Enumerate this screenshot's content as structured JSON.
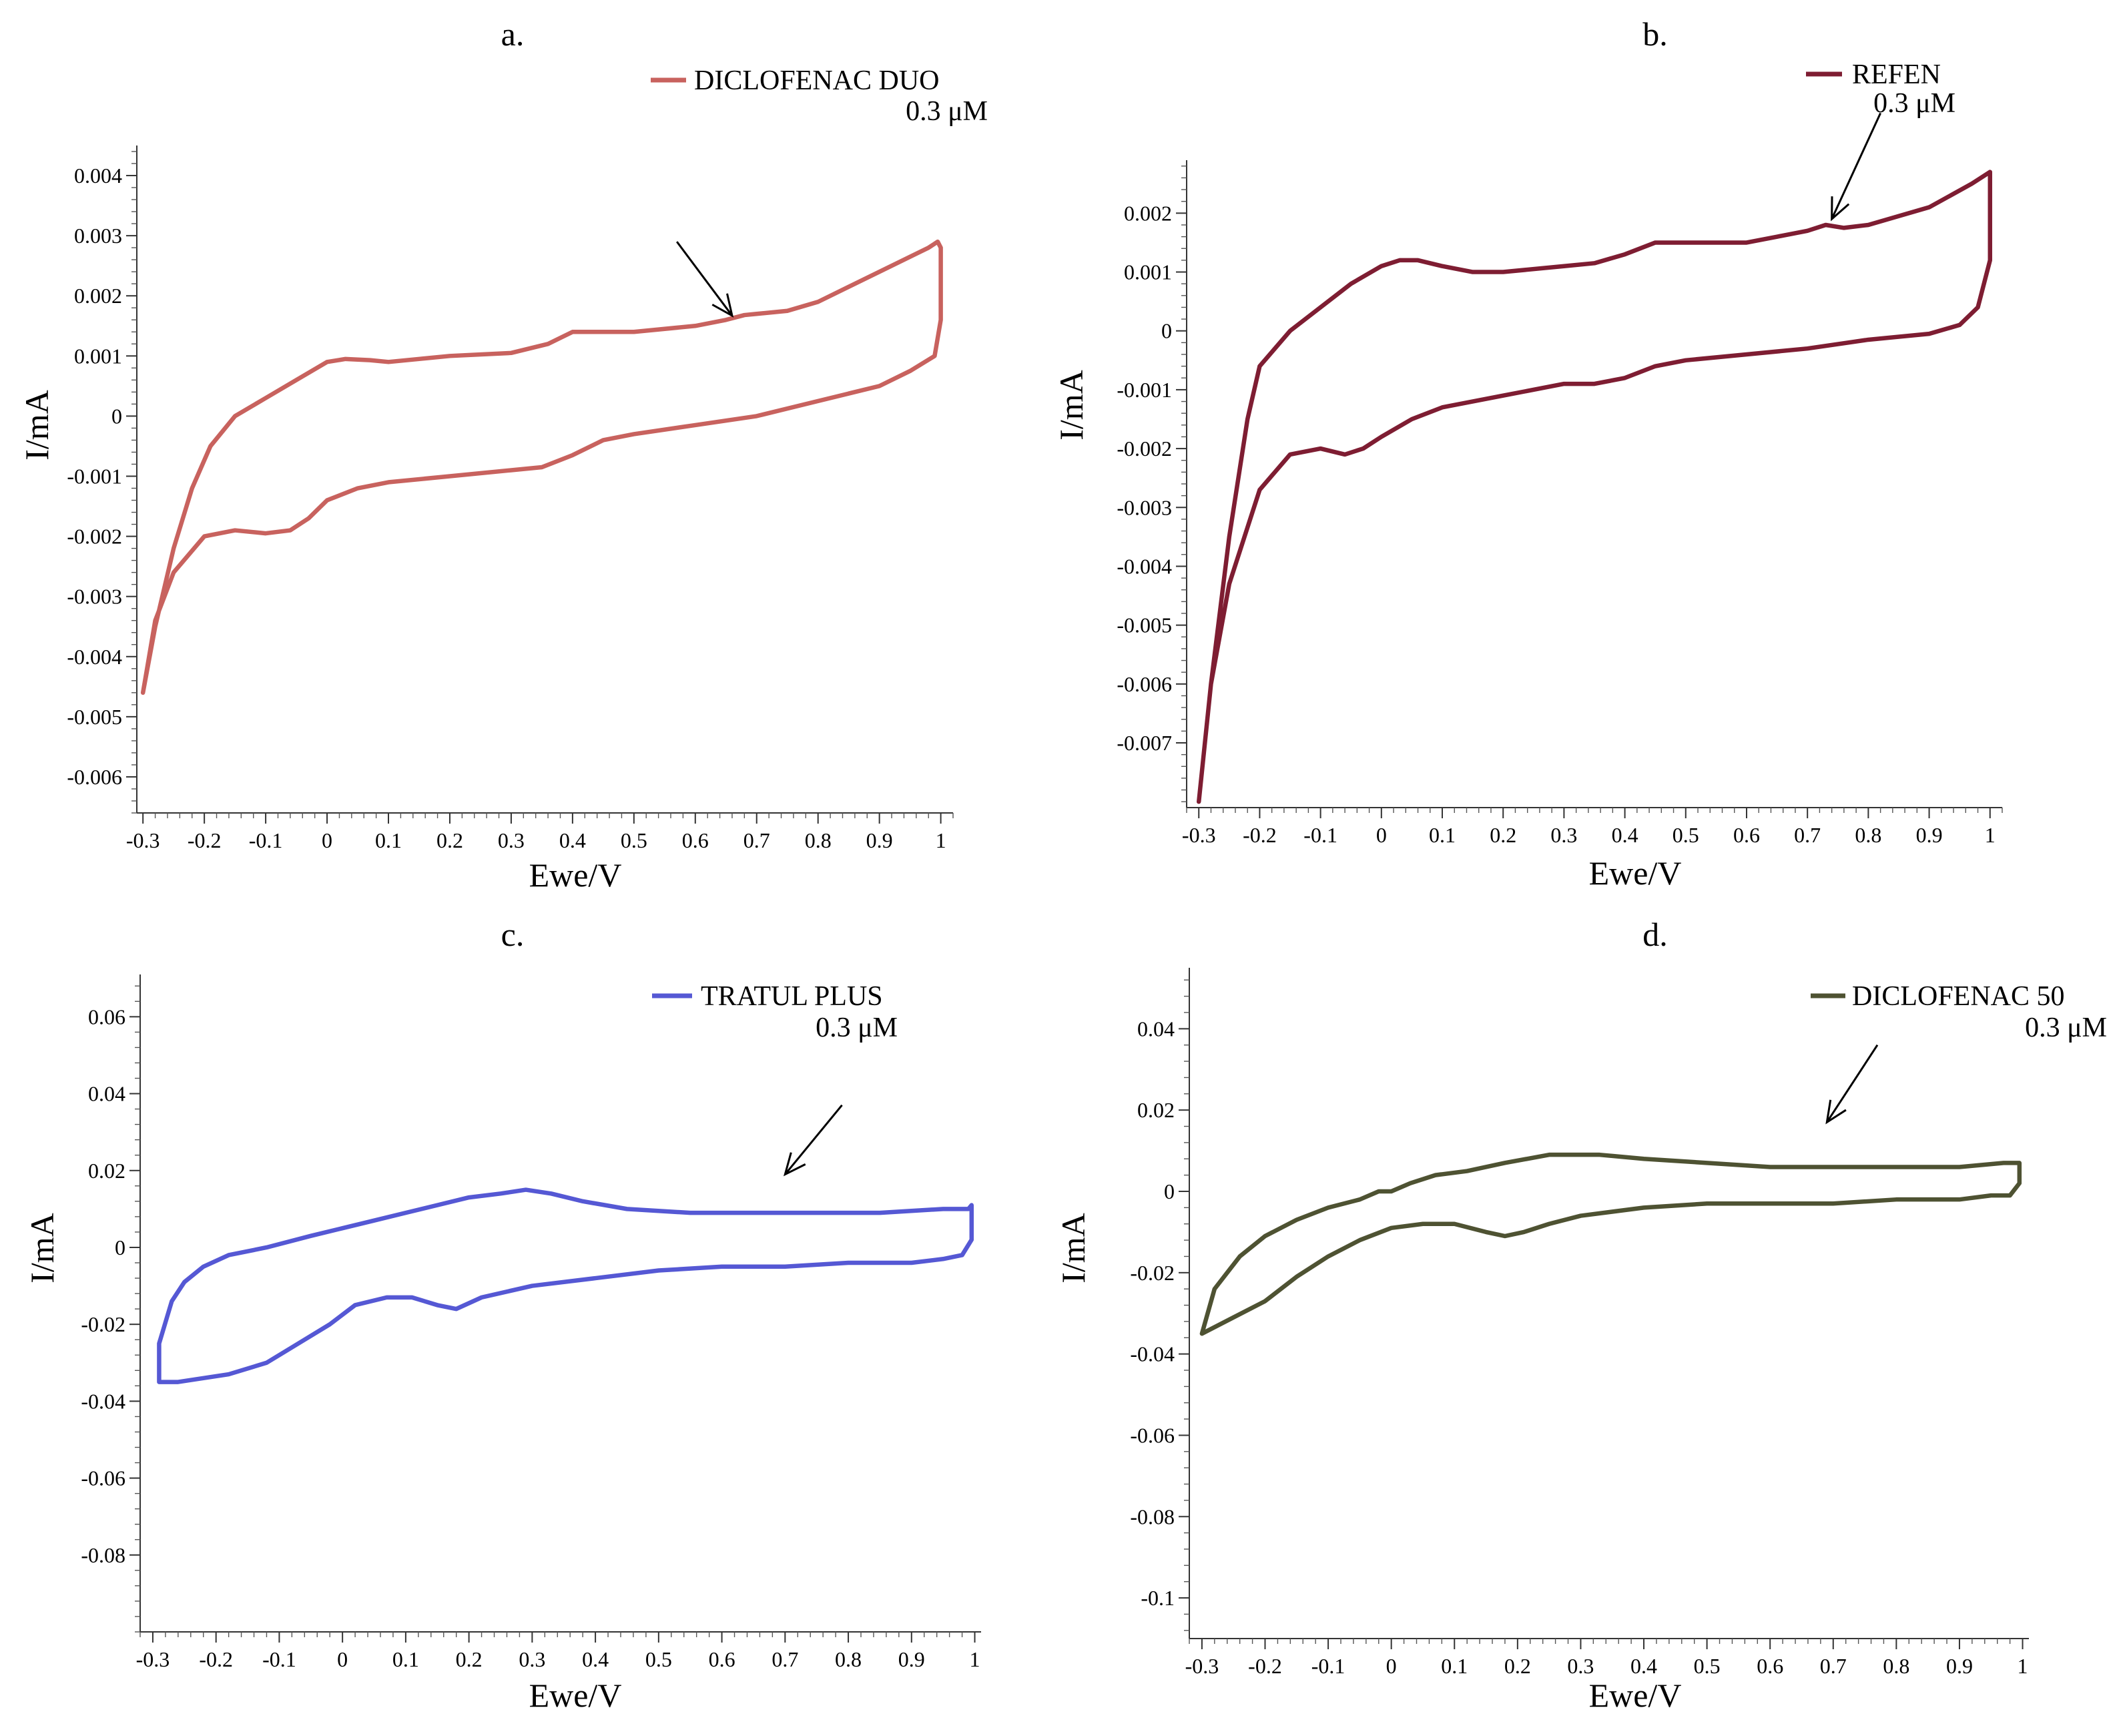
{
  "chart_data": [
    {
      "type": "line",
      "panel_label": "a.",
      "legend": {
        "name": "DICLOFENAC DUO",
        "sub": "0.3 μM",
        "placement": "top-right"
      },
      "color": "#c8625e",
      "xlabel": "Ewe/V",
      "ylabel": "I/mA",
      "xlim": [
        -0.31,
        1.02
      ],
      "ylim": [
        -0.0066,
        0.0045
      ],
      "x_ticks": [
        -0.3,
        -0.2,
        -0.1,
        0,
        0.1,
        0.2,
        0.3,
        0.4,
        0.5,
        0.6,
        0.7,
        0.8,
        0.9,
        1
      ],
      "x_tick_labels": [
        "-0.3",
        "-0.2",
        "-0.1",
        "0",
        "0.1",
        "0.2",
        "0.3",
        "0.4",
        "0.5",
        "0.6",
        "0.7",
        "0.8",
        "0.9",
        "1"
      ],
      "y_ticks": [
        0.004,
        0.003,
        0.002,
        0.001,
        0,
        -0.001,
        -0.002,
        -0.003,
        -0.004,
        -0.005,
        -0.006
      ],
      "y_tick_labels": [
        "0.004",
        "0.003",
        "0.002",
        "0.001",
        "0",
        "-0.001",
        "-0.002",
        "-0.003",
        "-0.004",
        "-0.005",
        "-0.006"
      ],
      "arrow": {
        "from": [
          0.57,
          0.0029
        ],
        "to": [
          0.66,
          0.00167
        ]
      },
      "series": [
        {
          "name": "DICLOFENAC DUO",
          "x": [
            -0.3,
            -0.28,
            -0.25,
            -0.22,
            -0.19,
            -0.15,
            -0.1,
            -0.05,
            0,
            0.03,
            0.07,
            0.1,
            0.15,
            0.2,
            0.3,
            0.36,
            0.4,
            0.42,
            0.5,
            0.6,
            0.65,
            0.68,
            0.7,
            0.75,
            0.8,
            0.9,
            0.98,
            0.995,
            1.0,
            1.0,
            0.99,
            0.95,
            0.9,
            0.8,
            0.7,
            0.6,
            0.5,
            0.45,
            0.4,
            0.35,
            0.3,
            0.2,
            0.1,
            0.05,
            0.0,
            -0.03,
            -0.06,
            -0.1,
            -0.15,
            -0.2,
            -0.25,
            -0.28,
            -0.3
          ],
          "y": [
            -0.0046,
            -0.0035,
            -0.0022,
            -0.0012,
            -0.0005,
            0.0,
            0.0003,
            0.0006,
            0.0009,
            0.00095,
            0.00093,
            0.0009,
            0.00095,
            0.001,
            0.00105,
            0.0012,
            0.0014,
            0.0014,
            0.0014,
            0.0015,
            0.0016,
            0.00168,
            0.0017,
            0.00175,
            0.0019,
            0.0024,
            0.0028,
            0.0029,
            0.0028,
            0.0016,
            0.001,
            0.00075,
            0.0005,
            0.00025,
            0.0,
            -0.00015,
            -0.0003,
            -0.0004,
            -0.00065,
            -0.00085,
            -0.0009,
            -0.001,
            -0.0011,
            -0.0012,
            -0.0014,
            -0.0017,
            -0.0019,
            -0.00195,
            -0.0019,
            -0.002,
            -0.0026,
            -0.0034,
            -0.0046
          ]
        }
      ]
    },
    {
      "type": "line",
      "panel_label": "b.",
      "legend": {
        "name": "REFEN",
        "sub": "0.3 μM",
        "placement": "top-right"
      },
      "color": "#7e1d32",
      "xlabel": "Ewe/V",
      "ylabel": "I/mA",
      "xlim": [
        -0.32,
        1.02
      ],
      "ylim": [
        -0.0081,
        0.0029
      ],
      "x_ticks": [
        -0.3,
        -0.2,
        -0.1,
        0,
        0.1,
        0.2,
        0.3,
        0.4,
        0.5,
        0.6,
        0.7,
        0.8,
        0.9,
        1
      ],
      "x_tick_labels": [
        "-0.3",
        "-0.2",
        "-0.1",
        "0",
        "0.1",
        "0.2",
        "0.3",
        "0.4",
        "0.5",
        "0.6",
        "0.7",
        "0.8",
        "0.9",
        "1"
      ],
      "y_ticks": [
        0.002,
        0.001,
        0,
        -0.001,
        -0.002,
        -0.003,
        -0.004,
        -0.005,
        -0.006,
        -0.007
      ],
      "y_tick_labels": [
        "0.002",
        "0.001",
        "0",
        "-0.001",
        "-0.002",
        "-0.003",
        "-0.004",
        "-0.005",
        "-0.006",
        "-0.007"
      ],
      "arrow": {
        "from": [
          0.82,
          0.0037
        ],
        "to": [
          0.74,
          0.0019
        ]
      },
      "series": [
        {
          "name": "REFEN",
          "x": [
            -0.3,
            -0.28,
            -0.25,
            -0.22,
            -0.2,
            -0.15,
            -0.1,
            -0.05,
            0,
            0.03,
            0.06,
            0.1,
            0.15,
            0.2,
            0.3,
            0.35,
            0.4,
            0.45,
            0.5,
            0.6,
            0.65,
            0.7,
            0.73,
            0.76,
            0.8,
            0.9,
            0.97,
            1.0,
            1.0,
            0.98,
            0.95,
            0.9,
            0.8,
            0.7,
            0.6,
            0.5,
            0.45,
            0.4,
            0.35,
            0.3,
            0.2,
            0.1,
            0.05,
            0.0,
            -0.03,
            -0.06,
            -0.1,
            -0.15,
            -0.2,
            -0.25,
            -0.28,
            -0.3
          ],
          "y": [
            -0.008,
            -0.006,
            -0.0035,
            -0.0015,
            -0.0006,
            0.0,
            0.0004,
            0.0008,
            0.0011,
            0.0012,
            0.0012,
            0.0011,
            0.001,
            0.001,
            0.0011,
            0.00115,
            0.0013,
            0.0015,
            0.0015,
            0.0015,
            0.0016,
            0.0017,
            0.0018,
            0.00175,
            0.0018,
            0.0021,
            0.0025,
            0.0027,
            0.0012,
            0.0004,
            0.0001,
            -5e-05,
            -0.00015,
            -0.0003,
            -0.0004,
            -0.0005,
            -0.0006,
            -0.0008,
            -0.0009,
            -0.0009,
            -0.0011,
            -0.0013,
            -0.0015,
            -0.0018,
            -0.002,
            -0.0021,
            -0.002,
            -0.0021,
            -0.0027,
            -0.0043,
            -0.006,
            -0.008
          ]
        }
      ]
    },
    {
      "type": "line",
      "panel_label": "c.",
      "legend": {
        "name": "TRATUL PLUS",
        "sub": "0.3 μM",
        "placement": "top-right"
      },
      "color": "#5558d4",
      "xlabel": "Ewe/V",
      "ylabel": "I/mA",
      "xlim": [
        -0.32,
        1.01
      ],
      "ylim": [
        -0.1,
        0.071
      ],
      "x_ticks": [
        -0.3,
        -0.2,
        -0.1,
        0,
        0.1,
        0.2,
        0.3,
        0.4,
        0.5,
        0.6,
        0.7,
        0.8,
        0.9,
        1
      ],
      "x_tick_labels": [
        "-0.3",
        "-0.2",
        "-0.1",
        "0",
        "0.1",
        "0.2",
        "0.3",
        "0.4",
        "0.5",
        "0.6",
        "0.7",
        "0.8",
        "0.9",
        "1"
      ],
      "y_ticks": [
        0.06,
        0.04,
        0.02,
        0,
        -0.02,
        -0.04,
        -0.06,
        -0.08
      ],
      "y_tick_labels": [
        "0.06",
        "0.04",
        "0.02",
        "0",
        "-0.02",
        "-0.04",
        "-0.06",
        "-0.08"
      ],
      "arrow": {
        "from": [
          0.79,
          0.037
        ],
        "to": [
          0.7,
          0.019
        ]
      },
      "series": [
        {
          "name": "TRATUL PLUS",
          "x": [
            -0.29,
            -0.27,
            -0.25,
            -0.22,
            -0.18,
            -0.12,
            -0.05,
            0.0,
            0.05,
            0.1,
            0.15,
            0.2,
            0.25,
            0.29,
            0.33,
            0.38,
            0.45,
            0.55,
            0.65,
            0.75,
            0.85,
            0.95,
            0.99,
            0.995,
            0.995,
            0.98,
            0.95,
            0.9,
            0.8,
            0.7,
            0.6,
            0.5,
            0.4,
            0.3,
            0.22,
            0.18,
            0.15,
            0.11,
            0.07,
            0.02,
            -0.02,
            -0.07,
            -0.12,
            -0.18,
            -0.22,
            -0.26,
            -0.29,
            -0.29
          ],
          "y": [
            -0.025,
            -0.014,
            -0.009,
            -0.005,
            -0.002,
            0.0,
            0.003,
            0.005,
            0.007,
            0.009,
            0.011,
            0.013,
            0.014,
            0.015,
            0.014,
            0.012,
            0.01,
            0.009,
            0.009,
            0.009,
            0.009,
            0.01,
            0.01,
            0.011,
            0.002,
            -0.002,
            -0.003,
            -0.004,
            -0.004,
            -0.005,
            -0.005,
            -0.006,
            -0.008,
            -0.01,
            -0.013,
            -0.016,
            -0.015,
            -0.013,
            -0.013,
            -0.015,
            -0.02,
            -0.025,
            -0.03,
            -0.033,
            -0.034,
            -0.035,
            -0.035,
            -0.025
          ]
        }
      ]
    },
    {
      "type": "line",
      "panel_label": "d.",
      "legend": {
        "name": "DICLOFENAC 50",
        "sub": "0.3 μM",
        "placement": "top-right"
      },
      "color": "#4e5232",
      "xlabel": "Ewe/V",
      "ylabel": "I/mA",
      "xlim": [
        -0.32,
        1.01
      ],
      "ylim": [
        -0.11,
        0.055
      ],
      "x_ticks": [
        -0.3,
        -0.2,
        -0.1,
        0,
        0.1,
        0.2,
        0.3,
        0.4,
        0.5,
        0.6,
        0.7,
        0.8,
        0.9,
        1
      ],
      "x_tick_labels": [
        "-0.3",
        "-0.2",
        "-0.1",
        "0",
        "0.1",
        "0.2",
        "0.3",
        "0.4",
        "0.5",
        "0.6",
        "0.7",
        "0.8",
        "0.9",
        "1"
      ],
      "y_ticks": [
        0.04,
        0.02,
        0,
        -0.02,
        -0.04,
        -0.06,
        -0.08,
        -0.1
      ],
      "y_tick_labels": [
        "0.04",
        "0.02",
        "0",
        "-0.02",
        "-0.04",
        "-0.06",
        "-0.08",
        "-0.1"
      ],
      "arrow": {
        "from": [
          0.77,
          0.036
        ],
        "to": [
          0.69,
          0.017
        ]
      },
      "series": [
        {
          "name": "DICLOFENAC 50",
          "x": [
            -0.3,
            -0.28,
            -0.24,
            -0.2,
            -0.15,
            -0.1,
            -0.05,
            -0.02,
            0.0,
            0.03,
            0.07,
            0.12,
            0.18,
            0.25,
            0.3,
            0.33,
            0.4,
            0.5,
            0.6,
            0.7,
            0.8,
            0.9,
            0.97,
            0.995,
            0.995,
            0.98,
            0.95,
            0.9,
            0.8,
            0.7,
            0.6,
            0.5,
            0.4,
            0.3,
            0.25,
            0.21,
            0.18,
            0.15,
            0.1,
            0.05,
            0.0,
            -0.05,
            -0.1,
            -0.15,
            -0.2,
            -0.25,
            -0.3
          ],
          "y": [
            -0.035,
            -0.024,
            -0.016,
            -0.011,
            -0.007,
            -0.004,
            -0.002,
            0.0,
            0.0,
            0.002,
            0.004,
            0.005,
            0.007,
            0.009,
            0.009,
            0.009,
            0.008,
            0.007,
            0.006,
            0.006,
            0.006,
            0.006,
            0.007,
            0.007,
            0.002,
            -0.001,
            -0.001,
            -0.002,
            -0.002,
            -0.003,
            -0.003,
            -0.003,
            -0.004,
            -0.006,
            -0.008,
            -0.01,
            -0.011,
            -0.01,
            -0.008,
            -0.008,
            -0.009,
            -0.012,
            -0.016,
            -0.021,
            -0.027,
            -0.031,
            -0.035
          ]
        }
      ]
    }
  ]
}
